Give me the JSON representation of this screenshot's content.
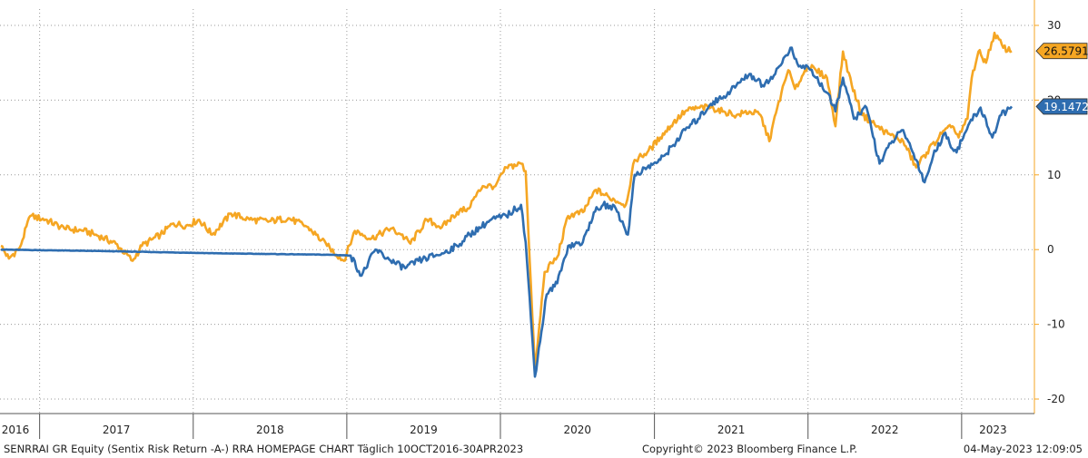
{
  "chart_data": {
    "type": "line",
    "x_range": [
      "2016-10-01",
      "2023-04-30"
    ],
    "ylim": [
      -20,
      30
    ],
    "y_ticks": [
      30,
      20,
      10,
      0,
      -10,
      -20
    ],
    "y_axis_side": "right",
    "y_axis_color": "#f5a623",
    "grid": "dotted",
    "year_labels": [
      "2016",
      "2017",
      "2018",
      "2019",
      "2020",
      "2021",
      "2022",
      "2023"
    ],
    "last_value_tags": [
      {
        "series": 0,
        "text": "26.5791"
      },
      {
        "series": 1,
        "text": "19.1472"
      }
    ],
    "series": [
      {
        "color": "#f5a623",
        "points": [
          [
            "2016-10-01",
            0.5
          ],
          [
            "2016-10-20",
            -1.2
          ],
          [
            "2016-11-15",
            0.3
          ],
          [
            "2016-12-10",
            4.5
          ],
          [
            "2017-01-15",
            4.0
          ],
          [
            "2017-03-01",
            2.8
          ],
          [
            "2017-04-15",
            2.5
          ],
          [
            "2017-05-15",
            2.0
          ],
          [
            "2017-07-01",
            0.8
          ],
          [
            "2017-08-10",
            -1.5
          ],
          [
            "2017-09-01",
            0.5
          ],
          [
            "2017-10-15",
            2.0
          ],
          [
            "2017-11-15",
            3.5
          ],
          [
            "2017-12-15",
            3.2
          ],
          [
            "2018-01-15",
            4.0
          ],
          [
            "2018-02-15",
            2.0
          ],
          [
            "2018-04-01",
            4.8
          ],
          [
            "2018-05-15",
            4.0
          ],
          [
            "2018-07-01",
            3.8
          ],
          [
            "2018-08-15",
            4.2
          ],
          [
            "2018-10-01",
            3.0
          ],
          [
            "2018-11-15",
            0.5
          ],
          [
            "2018-12-25",
            -1.5
          ],
          [
            "2019-01-20",
            2.5
          ],
          [
            "2019-03-01",
            1.5
          ],
          [
            "2019-04-15",
            2.8
          ],
          [
            "2019-05-10",
            2.0
          ],
          [
            "2019-06-01",
            0.8
          ],
          [
            "2019-07-10",
            4.0
          ],
          [
            "2019-08-15",
            3.0
          ],
          [
            "2019-09-20",
            5.0
          ],
          [
            "2019-10-15",
            5.5
          ],
          [
            "2019-11-20",
            8.5
          ],
          [
            "2019-12-20",
            8.5
          ],
          [
            "2020-01-15",
            11.0
          ],
          [
            "2020-02-19",
            11.5
          ],
          [
            "2020-03-01",
            10.5
          ],
          [
            "2020-03-23",
            -16.5
          ],
          [
            "2020-04-15",
            -3.0
          ],
          [
            "2020-05-15",
            -1.0
          ],
          [
            "2020-06-10",
            4.5
          ],
          [
            "2020-07-15",
            5.0
          ],
          [
            "2020-08-15",
            8.0
          ],
          [
            "2020-09-15",
            7.0
          ],
          [
            "2020-10-25",
            6.0
          ],
          [
            "2020-11-15",
            12.0
          ],
          [
            "2020-12-15",
            13.0
          ],
          [
            "2021-01-15",
            15.0
          ],
          [
            "2021-02-15",
            17.0
          ],
          [
            "2021-03-15",
            18.5
          ],
          [
            "2021-04-15",
            19.0
          ],
          [
            "2021-05-15",
            19.0
          ],
          [
            "2021-06-15",
            18.5
          ],
          [
            "2021-07-15",
            18.0
          ],
          [
            "2021-08-15",
            18.5
          ],
          [
            "2021-09-10",
            18.0
          ],
          [
            "2021-10-01",
            14.5
          ],
          [
            "2021-10-20",
            19.0
          ],
          [
            "2021-11-15",
            24.0
          ],
          [
            "2021-12-01",
            21.5
          ],
          [
            "2021-12-31",
            24.5
          ],
          [
            "2022-01-20",
            24.0
          ],
          [
            "2022-02-15",
            23.0
          ],
          [
            "2022-03-07",
            16.5
          ],
          [
            "2022-03-25",
            26.5
          ],
          [
            "2022-04-15",
            22.0
          ],
          [
            "2022-05-10",
            18.0
          ],
          [
            "2022-06-15",
            16.5
          ],
          [
            "2022-07-10",
            15.5
          ],
          [
            "2022-08-15",
            14.5
          ],
          [
            "2022-09-15",
            11.0
          ],
          [
            "2022-10-10",
            13.0
          ],
          [
            "2022-11-15",
            15.5
          ],
          [
            "2022-12-10",
            16.5
          ],
          [
            "2022-12-25",
            15.0
          ],
          [
            "2023-01-15",
            17.5
          ],
          [
            "2023-01-25",
            23.0
          ],
          [
            "2023-02-10",
            26.5
          ],
          [
            "2023-02-28",
            25.0
          ],
          [
            "2023-03-20",
            29.0
          ],
          [
            "2023-04-10",
            27.0
          ],
          [
            "2023-04-30",
            26.5791
          ]
        ]
      },
      {
        "color": "#2e6db0",
        "points": [
          [
            "2016-10-01",
            0.0
          ],
          [
            "2017-06-01",
            -0.2
          ],
          [
            "2018-03-01",
            -0.5
          ],
          [
            "2018-11-30",
            -0.7
          ],
          [
            "2019-01-10",
            -0.8
          ],
          [
            "2019-02-05",
            -3.5
          ],
          [
            "2019-03-10",
            0.0
          ],
          [
            "2019-04-15",
            -1.5
          ],
          [
            "2019-05-20",
            -2.5
          ],
          [
            "2019-06-20",
            -1.5
          ],
          [
            "2019-08-15",
            -0.5
          ],
          [
            "2019-09-20",
            0.5
          ],
          [
            "2019-10-20",
            2.0
          ],
          [
            "2019-12-10",
            4.0
          ],
          [
            "2020-01-15",
            4.5
          ],
          [
            "2020-02-19",
            6.0
          ],
          [
            "2020-03-01",
            1.0
          ],
          [
            "2020-03-23",
            -17.0
          ],
          [
            "2020-04-20",
            -6.0
          ],
          [
            "2020-05-15",
            -4.5
          ],
          [
            "2020-06-10",
            0.5
          ],
          [
            "2020-07-15",
            1.0
          ],
          [
            "2020-08-10",
            5.0
          ],
          [
            "2020-09-01",
            6.0
          ],
          [
            "2020-10-01",
            5.5
          ],
          [
            "2020-10-30",
            2.0
          ],
          [
            "2020-11-15",
            10.0
          ],
          [
            "2020-12-15",
            11.0
          ],
          [
            "2021-01-15",
            12.0
          ],
          [
            "2021-02-15",
            14.0
          ],
          [
            "2021-03-15",
            16.0
          ],
          [
            "2021-04-15",
            17.5
          ],
          [
            "2021-05-15",
            19.5
          ],
          [
            "2021-06-15",
            20.5
          ],
          [
            "2021-07-15",
            22.0
          ],
          [
            "2021-08-15",
            23.5
          ],
          [
            "2021-09-15",
            22.0
          ],
          [
            "2021-10-15",
            23.5
          ],
          [
            "2021-11-20",
            27.0
          ],
          [
            "2021-12-10",
            24.5
          ],
          [
            "2021-12-31",
            24.5
          ],
          [
            "2022-01-20",
            23.0
          ],
          [
            "2022-02-15",
            21.0
          ],
          [
            "2022-03-07",
            18.5
          ],
          [
            "2022-03-25",
            23.0
          ],
          [
            "2022-04-20",
            17.5
          ],
          [
            "2022-05-20",
            19.0
          ],
          [
            "2022-06-20",
            11.5
          ],
          [
            "2022-07-20",
            14.5
          ],
          [
            "2022-08-15",
            16.0
          ],
          [
            "2022-09-15",
            12.0
          ],
          [
            "2022-10-05",
            9.0
          ],
          [
            "2022-10-25",
            12.5
          ],
          [
            "2022-11-20",
            15.5
          ],
          [
            "2022-12-20",
            13.0
          ],
          [
            "2023-01-20",
            17.0
          ],
          [
            "2023-02-15",
            19.0
          ],
          [
            "2023-03-15",
            15.0
          ],
          [
            "2023-04-05",
            18.0
          ],
          [
            "2023-04-30",
            19.1472
          ]
        ]
      }
    ]
  },
  "footer": {
    "left": "SENRRAI GR Equity (Sentix Risk Return -A-) RRA HOMEPAGE CHART  Täglich 10OCT2016-30APR2023",
    "center": "Copyright© 2023 Bloomberg Finance L.P.",
    "right": "04-May-2023 12:09:05"
  }
}
